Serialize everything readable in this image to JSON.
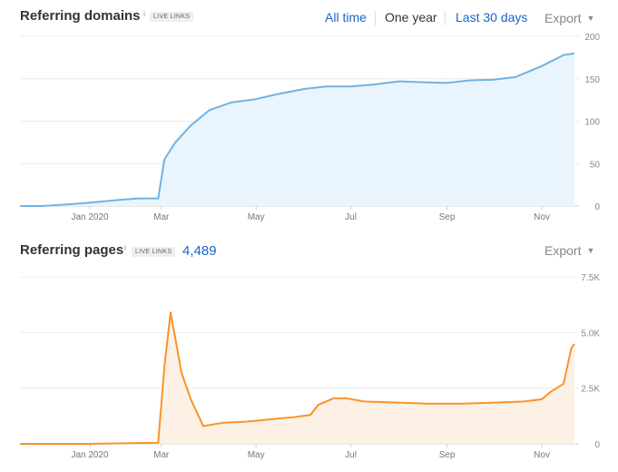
{
  "top_panel": {
    "title": "Referring domains",
    "info_icon": "info-icon",
    "badge": "LIVE LINKS",
    "range_buttons": [
      "All time",
      "One year",
      "Last 30 days"
    ],
    "active_range": "One year",
    "export_label": "Export",
    "caret_icon": "caret-down-icon"
  },
  "bottom_panel": {
    "title": "Referring pages",
    "info_icon": "info-icon",
    "badge": "LIVE LINKS",
    "count": "4,489",
    "export_label": "Export",
    "caret_icon": "caret-down-icon"
  },
  "chart_data": [
    {
      "type": "area",
      "title": "Referring domains",
      "line_color": "#6fb3e3",
      "fill_color": "#eaf4fc",
      "x_ticks": [
        "Jan 2020",
        "Mar",
        "May",
        "Jul",
        "Sep",
        "Nov"
      ],
      "y_ticks": [
        "0",
        "50",
        "100",
        "150",
        "200"
      ],
      "ylim": [
        0,
        200
      ],
      "grid": true,
      "x": [
        "2019-12-01",
        "2019-12-15",
        "2020-01-01",
        "2020-01-15",
        "2020-02-01",
        "2020-02-15",
        "2020-02-28",
        "2020-03-03",
        "2020-03-10",
        "2020-03-20",
        "2020-04-01",
        "2020-04-15",
        "2020-05-01",
        "2020-05-15",
        "2020-06-01",
        "2020-06-15",
        "2020-07-01",
        "2020-07-15",
        "2020-08-01",
        "2020-08-15",
        "2020-09-01",
        "2020-09-15",
        "2020-10-01",
        "2020-10-15",
        "2020-11-01",
        "2020-11-15",
        "2020-11-22"
      ],
      "values": [
        0,
        0,
        2,
        4,
        7,
        9,
        9,
        55,
        75,
        95,
        113,
        122,
        126,
        132,
        138,
        141,
        141,
        143,
        147,
        146,
        145,
        148,
        149,
        152,
        165,
        178,
        180
      ]
    },
    {
      "type": "area",
      "title": "Referring pages",
      "line_color": "#f7942c",
      "fill_color": "#fdf0e4",
      "x_ticks": [
        "Jan 2020",
        "Mar",
        "May",
        "Jul",
        "Sep",
        "Nov"
      ],
      "y_ticks": [
        "0",
        "2.5K",
        "5.0K",
        "7.5K"
      ],
      "ylim": [
        0,
        7500
      ],
      "grid": true,
      "x": [
        "2019-12-01",
        "2020-01-15",
        "2020-02-28",
        "2020-03-03",
        "2020-03-07",
        "2020-03-14",
        "2020-03-20",
        "2020-03-28",
        "2020-04-10",
        "2020-04-25",
        "2020-05-10",
        "2020-05-25",
        "2020-06-05",
        "2020-06-10",
        "2020-06-20",
        "2020-06-28",
        "2020-07-10",
        "2020-08-01",
        "2020-08-20",
        "2020-09-10",
        "2020-10-01",
        "2020-10-20",
        "2020-11-01",
        "2020-11-07",
        "2020-11-15",
        "2020-11-20",
        "2020-11-22"
      ],
      "values": [
        0,
        0,
        50,
        3500,
        5900,
        3200,
        2000,
        800,
        950,
        1000,
        1100,
        1200,
        1300,
        1750,
        2050,
        2050,
        1900,
        1850,
        1800,
        1800,
        1850,
        1900,
        2000,
        2350,
        2700,
        4300,
        4489
      ]
    }
  ]
}
